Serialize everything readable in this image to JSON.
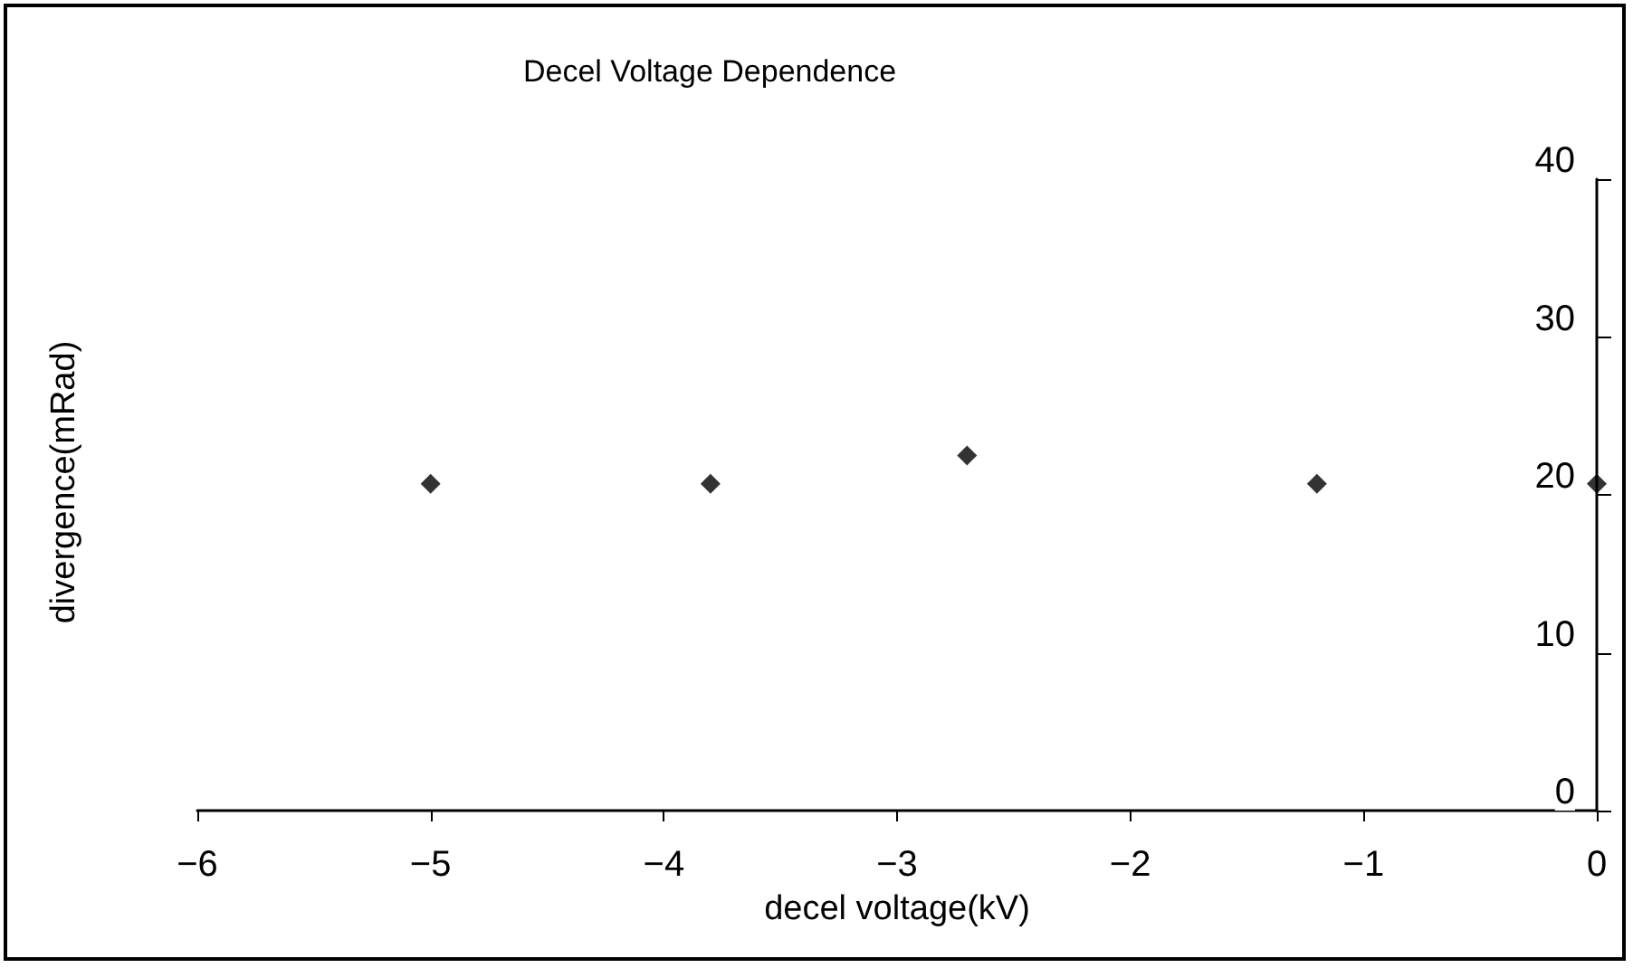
{
  "chart_data": {
    "type": "scatter",
    "title": "Decel Voltage Dependence",
    "xlabel": "decel voltage(kV)",
    "ylabel": "divergence(mRad)",
    "x": [
      -5,
      -3.8,
      -2.7,
      -1.2,
      0
    ],
    "series": [
      {
        "color": "#000000",
        "values": [
          20.7,
          20.7,
          22.5,
          20.7,
          20.7
        ]
      }
    ],
    "xlim": [
      -6,
      0
    ],
    "xticks": [
      -6,
      -5,
      -4,
      -3,
      -2,
      -1,
      0
    ],
    "ylim": [
      0,
      40
    ],
    "yticks": [
      0,
      10,
      20,
      30,
      40
    ],
    "marker": "diamond",
    "grid": false
  }
}
